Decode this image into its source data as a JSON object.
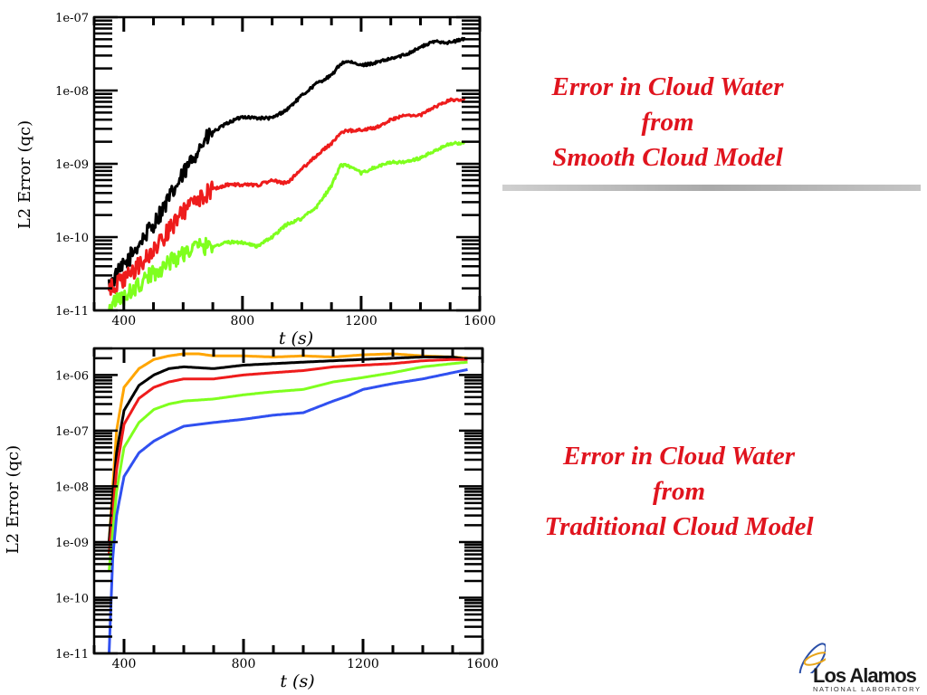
{
  "slides": {
    "top_caption": [
      "Error in Cloud Water",
      "from",
      "Smooth Cloud Model"
    ],
    "bottom_caption": [
      "Error in Cloud Water",
      "from",
      "Traditional Cloud Model"
    ]
  },
  "logo": {
    "name": "Los Alamos",
    "subtitle": "NATIONAL LABORATORY",
    "icon": "los-alamos-atom-icon"
  },
  "colors": {
    "caption": "#e0141e",
    "black": "#000000",
    "red": "#ee1c1c",
    "green": "#7fff1e",
    "orange": "#ffa500",
    "blue": "#3050f0"
  },
  "chart_data": [
    {
      "type": "line",
      "xlabel": "t (s)",
      "ylabel": "L2 Error (qc)",
      "xlim": [
        300,
        1600
      ],
      "ylim": [
        1e-11,
        1e-07
      ],
      "yscale": "log",
      "x_ticks": [
        400,
        800,
        1200,
        1600
      ],
      "y_ticks": [
        "1e-11",
        "1e-10",
        "1e-09",
        "1e-08",
        "1e-07"
      ],
      "series": [
        {
          "color": "#000000",
          "noisy": true,
          "points": [
            [
              350,
              2.2e-11
            ],
            [
              400,
              4e-11
            ],
            [
              450,
              8e-11
            ],
            [
              500,
              1.5e-10
            ],
            [
              550,
              3.2e-10
            ],
            [
              600,
              7e-10
            ],
            [
              650,
              1.6e-09
            ],
            [
              700,
              2.7e-09
            ],
            [
              750,
              3.6e-09
            ],
            [
              800,
              4.4e-09
            ],
            [
              850,
              4.2e-09
            ],
            [
              900,
              4.2e-09
            ],
            [
              950,
              5.5e-09
            ],
            [
              1000,
              8.5e-09
            ],
            [
              1050,
              1.25e-08
            ],
            [
              1100,
              1.6e-08
            ],
            [
              1130,
              2.3e-08
            ],
            [
              1150,
              2.5e-08
            ],
            [
              1200,
              2.2e-08
            ],
            [
              1250,
              2.4e-08
            ],
            [
              1300,
              2.7e-08
            ],
            [
              1350,
              3.1e-08
            ],
            [
              1400,
              3.9e-08
            ],
            [
              1450,
              4.7e-08
            ],
            [
              1500,
              4.5e-08
            ],
            [
              1550,
              5.1e-08
            ]
          ]
        },
        {
          "color": "#ee1c1c",
          "noisy": true,
          "points": [
            [
              350,
              1.9e-11
            ],
            [
              400,
              2.6e-11
            ],
            [
              450,
              4e-11
            ],
            [
              500,
              6.5e-11
            ],
            [
              550,
              1.2e-10
            ],
            [
              600,
              2.2e-10
            ],
            [
              650,
              3.3e-10
            ],
            [
              700,
              4.5e-10
            ],
            [
              750,
              5.2e-10
            ],
            [
              800,
              5.2e-10
            ],
            [
              850,
              5.1e-10
            ],
            [
              900,
              5.9e-10
            ],
            [
              950,
              5.4e-10
            ],
            [
              1000,
              8.5e-10
            ],
            [
              1050,
              1.3e-09
            ],
            [
              1100,
              1.9e-09
            ],
            [
              1130,
              2.6e-09
            ],
            [
              1150,
              2.8e-09
            ],
            [
              1200,
              2.9e-09
            ],
            [
              1250,
              3.1e-09
            ],
            [
              1300,
              4e-09
            ],
            [
              1350,
              4.6e-09
            ],
            [
              1400,
              4.6e-09
            ],
            [
              1450,
              6e-09
            ],
            [
              1500,
              7.4e-09
            ],
            [
              1550,
              7.4e-09
            ]
          ]
        },
        {
          "color": "#7fff1e",
          "noisy": true,
          "points": [
            [
              350,
              1.2e-11
            ],
            [
              400,
              1.5e-11
            ],
            [
              450,
              2.2e-11
            ],
            [
              500,
              3.2e-11
            ],
            [
              550,
              4.5e-11
            ],
            [
              600,
              6e-11
            ],
            [
              650,
              7.5e-11
            ],
            [
              700,
              7.5e-11
            ],
            [
              750,
              8.5e-11
            ],
            [
              800,
              8.5e-11
            ],
            [
              850,
              7.5e-11
            ],
            [
              900,
              1e-10
            ],
            [
              950,
              1.5e-10
            ],
            [
              1000,
              1.8e-10
            ],
            [
              1050,
              2.6e-10
            ],
            [
              1100,
              5e-10
            ],
            [
              1130,
              9.5e-10
            ],
            [
              1150,
              9.5e-10
            ],
            [
              1200,
              7.5e-10
            ],
            [
              1250,
              9e-10
            ],
            [
              1300,
              1.05e-09
            ],
            [
              1350,
              1.05e-09
            ],
            [
              1400,
              1.2e-09
            ],
            [
              1450,
              1.5e-09
            ],
            [
              1500,
              1.9e-09
            ],
            [
              1550,
              1.9e-09
            ]
          ]
        }
      ]
    },
    {
      "type": "line",
      "xlabel": "t (s)",
      "ylabel": "L2 Error (qc)",
      "xlim": [
        300,
        1600
      ],
      "ylim": [
        1e-11,
        3e-06
      ],
      "yscale": "log",
      "x_ticks": [
        400,
        800,
        1200,
        1600
      ],
      "y_ticks": [
        "1e-11",
        "1e-10",
        "1e-09",
        "1e-08",
        "1e-07",
        "1e-06"
      ],
      "series": [
        {
          "color": "#ffa500",
          "points": [
            [
              350,
              1e-09
            ],
            [
              375,
              1e-07
            ],
            [
              400,
              6e-07
            ],
            [
              450,
              1.3e-06
            ],
            [
              500,
              1.9e-06
            ],
            [
              550,
              2.2e-06
            ],
            [
              600,
              2.4e-06
            ],
            [
              650,
              2.4e-06
            ],
            [
              700,
              2.2e-06
            ],
            [
              800,
              2.2e-06
            ],
            [
              900,
              2.1e-06
            ],
            [
              1000,
              2.2e-06
            ],
            [
              1100,
              2.1e-06
            ],
            [
              1200,
              2.3e-06
            ],
            [
              1300,
              2.4e-06
            ],
            [
              1400,
              2.2e-06
            ],
            [
              1500,
              2.1e-06
            ],
            [
              1550,
              2e-06
            ]
          ]
        },
        {
          "color": "#000000",
          "points": [
            [
              350,
              1e-09
            ],
            [
              375,
              4e-08
            ],
            [
              400,
              2.3e-07
            ],
            [
              450,
              6.5e-07
            ],
            [
              500,
              1e-06
            ],
            [
              550,
              1.3e-06
            ],
            [
              600,
              1.4e-06
            ],
            [
              700,
              1.3e-06
            ],
            [
              800,
              1.5e-06
            ],
            [
              900,
              1.6e-06
            ],
            [
              1000,
              1.7e-06
            ],
            [
              1100,
              1.8e-06
            ],
            [
              1200,
              1.9e-06
            ],
            [
              1300,
              2e-06
            ],
            [
              1400,
              2.1e-06
            ],
            [
              1500,
              2.1e-06
            ],
            [
              1550,
              1.9e-06
            ]
          ]
        },
        {
          "color": "#ee1c1c",
          "points": [
            [
              350,
              6e-10
            ],
            [
              375,
              2e-08
            ],
            [
              400,
              1.3e-07
            ],
            [
              450,
              3.8e-07
            ],
            [
              500,
              6e-07
            ],
            [
              550,
              7.5e-07
            ],
            [
              600,
              8.5e-07
            ],
            [
              700,
              8.5e-07
            ],
            [
              800,
              1e-06
            ],
            [
              900,
              1.1e-06
            ],
            [
              1000,
              1.2e-06
            ],
            [
              1100,
              1.4e-06
            ],
            [
              1200,
              1.5e-06
            ],
            [
              1300,
              1.6e-06
            ],
            [
              1400,
              1.8e-06
            ],
            [
              1500,
              1.9e-06
            ],
            [
              1550,
              1.9e-06
            ]
          ]
        },
        {
          "color": "#7fff1e",
          "points": [
            [
              350,
              3e-10
            ],
            [
              375,
              8e-09
            ],
            [
              400,
              5e-08
            ],
            [
              450,
              1.4e-07
            ],
            [
              500,
              2.4e-07
            ],
            [
              550,
              3e-07
            ],
            [
              600,
              3.4e-07
            ],
            [
              700,
              3.7e-07
            ],
            [
              800,
              4.4e-07
            ],
            [
              900,
              5e-07
            ],
            [
              1000,
              5.5e-07
            ],
            [
              1100,
              7.5e-07
            ],
            [
              1200,
              9e-07
            ],
            [
              1300,
              1.1e-06
            ],
            [
              1400,
              1.4e-06
            ],
            [
              1500,
              1.6e-06
            ],
            [
              1550,
              1.7e-06
            ]
          ]
        },
        {
          "color": "#3050f0",
          "points": [
            [
              350,
              1e-11
            ],
            [
              362,
              5e-10
            ],
            [
              375,
              3e-09
            ],
            [
              400,
              1.5e-08
            ],
            [
              450,
              4e-08
            ],
            [
              500,
              6.5e-08
            ],
            [
              550,
              9e-08
            ],
            [
              600,
              1.2e-07
            ],
            [
              700,
              1.4e-07
            ],
            [
              800,
              1.6e-07
            ],
            [
              900,
              1.9e-07
            ],
            [
              1000,
              2.1e-07
            ],
            [
              1100,
              3.4e-07
            ],
            [
              1150,
              4.2e-07
            ],
            [
              1200,
              5.5e-07
            ],
            [
              1300,
              7e-07
            ],
            [
              1400,
              8.5e-07
            ],
            [
              1500,
              1.1e-06
            ],
            [
              1550,
              1.25e-06
            ]
          ]
        }
      ]
    }
  ]
}
